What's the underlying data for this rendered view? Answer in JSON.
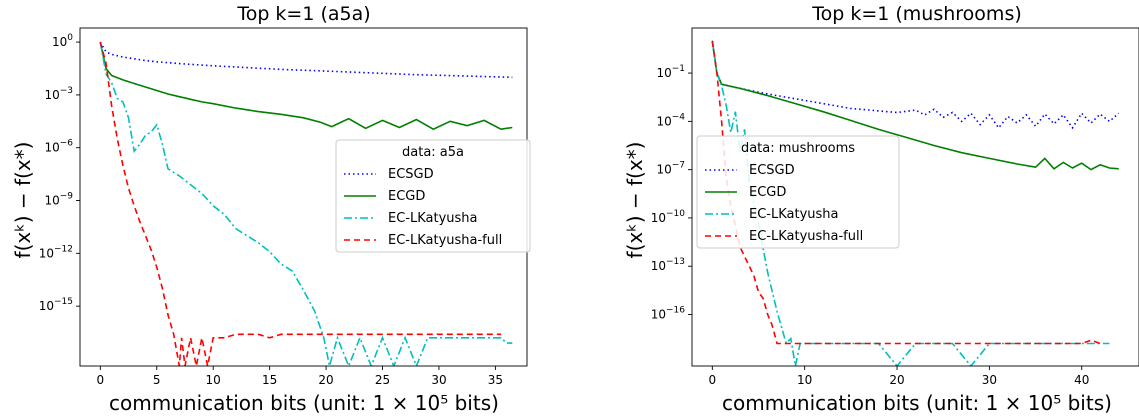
{
  "chart_data": [
    {
      "type": "line",
      "title": "Top k=1 (a5a)",
      "xlabel": "communication bits (unit: 1 × 10⁵ bits)",
      "ylabel": "f(xᵏ) − f(x*)",
      "yscale": "log",
      "xlim": [
        -1.8,
        37.8
      ],
      "ylim_log10": [
        -18.4,
        0.8
      ],
      "x_ticks": [
        0,
        5,
        10,
        15,
        20,
        25,
        30,
        35
      ],
      "x_tick_labels": [
        "0",
        "5",
        "10",
        "15",
        "20",
        "25",
        "30",
        "35"
      ],
      "y_ticks_log10": [
        0,
        -3,
        -6,
        -9,
        -12,
        -15
      ],
      "y_tick_labels": [
        "10^0",
        "10^-3",
        "10^-6",
        "10^-9",
        "10^-12",
        "10^-15"
      ],
      "grid": false,
      "legend": {
        "title": "data: a5a",
        "position": "center-right"
      },
      "series": [
        {
          "name": "ECSGD",
          "color": "#0000ff",
          "style": "dotted",
          "x": [
            0,
            0.5,
            1,
            2,
            3,
            4,
            5,
            7,
            10,
            13,
            16,
            20,
            24,
            28,
            32,
            36.5
          ],
          "y_log10": [
            0,
            -0.55,
            -0.7,
            -0.85,
            -0.95,
            -1.05,
            -1.12,
            -1.22,
            -1.35,
            -1.45,
            -1.55,
            -1.65,
            -1.75,
            -1.85,
            -1.92,
            -2.0
          ]
        },
        {
          "name": "ECGD",
          "color": "#008000",
          "style": "solid",
          "x": [
            0,
            0.5,
            1,
            2,
            3,
            4,
            5,
            6,
            7,
            8,
            9,
            10,
            12,
            14,
            16,
            18,
            19.5,
            20.5,
            22,
            23.5,
            25,
            26.5,
            28,
            29.5,
            31,
            32.5,
            34,
            35.5,
            36.5
          ],
          "y_log10": [
            0,
            -1.5,
            -1.9,
            -2.15,
            -2.35,
            -2.55,
            -2.75,
            -2.95,
            -3.1,
            -3.25,
            -3.4,
            -3.5,
            -3.75,
            -3.95,
            -4.1,
            -4.3,
            -4.55,
            -4.8,
            -4.35,
            -4.9,
            -4.45,
            -4.85,
            -4.4,
            -4.95,
            -4.5,
            -4.75,
            -4.45,
            -4.95,
            -4.85
          ]
        },
        {
          "name": "EC-LKatyusha",
          "color": "#00bfbf",
          "style": "dashdot",
          "x": [
            0,
            0.5,
            1,
            1.5,
            2,
            2.5,
            3,
            3.5,
            4,
            4.5,
            5,
            5.5,
            6,
            6.5,
            7,
            8,
            9,
            10,
            11,
            12,
            13,
            14,
            15,
            16,
            17,
            18,
            19,
            19.8,
            20.3,
            21,
            22,
            23,
            24,
            25,
            26,
            27,
            28,
            29,
            30,
            31,
            32,
            33,
            34,
            35,
            35.5,
            36,
            36.5
          ],
          "y_log10": [
            0,
            -1.8,
            -2.3,
            -3.2,
            -3.4,
            -4.3,
            -6.2,
            -5.8,
            -5.3,
            -5.1,
            -4.7,
            -5.8,
            -7.2,
            -7.4,
            -7.6,
            -8.1,
            -8.6,
            -9.3,
            -9.8,
            -10.6,
            -11.0,
            -11.4,
            -11.9,
            -12.6,
            -13.0,
            -14.1,
            -15.3,
            -16.8,
            -18.4,
            -16.8,
            -18.4,
            -16.8,
            -18.4,
            -16.8,
            -18.4,
            -16.8,
            -18.4,
            -16.8,
            -16.8,
            -16.8,
            -16.8,
            -16.8,
            -16.8,
            -16.8,
            -16.8,
            -17.1,
            -17.1
          ]
        },
        {
          "name": "EC-LKatyusha-full",
          "color": "#ff0000",
          "style": "dashed",
          "x": [
            0,
            0.5,
            1,
            1.5,
            2,
            2.5,
            3,
            3.5,
            4,
            4.5,
            5,
            5.5,
            6,
            6.5,
            7,
            7.2,
            7.5,
            8,
            8.5,
            9,
            9.5,
            10,
            10.5,
            11,
            12,
            13,
            14,
            15,
            16,
            18,
            20,
            22,
            24,
            26,
            28,
            30,
            32,
            34,
            35.5
          ],
          "y_log10": [
            0,
            -1.2,
            -3.6,
            -5.5,
            -7.0,
            -8.3,
            -9.3,
            -10.2,
            -11.0,
            -11.8,
            -12.8,
            -14.0,
            -15.5,
            -16.6,
            -18.4,
            -16.8,
            -18.4,
            -16.8,
            -18.4,
            -16.8,
            -18.4,
            -16.8,
            -16.8,
            -16.8,
            -16.6,
            -16.6,
            -16.6,
            -16.8,
            -16.6,
            -16.6,
            -16.6,
            -16.6,
            -16.6,
            -16.6,
            -16.6,
            -16.6,
            -16.6,
            -16.6,
            -16.6
          ]
        }
      ]
    },
    {
      "type": "line",
      "title": "Top k=1 (mushrooms)",
      "xlabel": "communication bits (unit: 1 × 10⁵ bits)",
      "ylabel": "f(xᵏ) − f(x*)",
      "yscale": "log",
      "xlim": [
        -2.2,
        46.2
      ],
      "ylim_log10": [
        -19.2,
        1.8
      ],
      "x_ticks": [
        0,
        10,
        20,
        30,
        40
      ],
      "x_tick_labels": [
        "0",
        "10",
        "20",
        "30",
        "40"
      ],
      "y_ticks_log10": [
        -1,
        -4,
        -7,
        -10,
        -13,
        -16
      ],
      "y_tick_labels": [
        "10^-1",
        "10^-4",
        "10^-7",
        "10^-10",
        "10^-13",
        "10^-16"
      ],
      "grid": false,
      "legend": {
        "title": "data: mushrooms",
        "position": "center-left"
      },
      "series": [
        {
          "name": "ECSGD",
          "color": "#0000ff",
          "style": "dotted",
          "x": [
            0,
            0.5,
            1,
            3,
            6,
            9,
            12,
            15,
            18,
            20,
            22,
            23,
            24,
            25,
            26,
            27,
            28,
            29,
            30,
            31,
            32,
            33,
            34,
            35,
            36,
            37,
            38,
            39,
            40,
            41,
            42,
            43,
            44
          ],
          "y_log10": [
            1,
            -1.0,
            -1.7,
            -1.95,
            -2.3,
            -2.6,
            -2.9,
            -3.2,
            -3.35,
            -3.45,
            -3.3,
            -3.6,
            -3.25,
            -3.75,
            -3.45,
            -4.0,
            -3.5,
            -4.2,
            -3.6,
            -4.4,
            -3.7,
            -4.1,
            -3.6,
            -4.3,
            -3.55,
            -4.15,
            -3.6,
            -4.4,
            -3.5,
            -4.1,
            -3.55,
            -4.0,
            -3.5
          ]
        },
        {
          "name": "ECGD",
          "color": "#008000",
          "style": "solid",
          "x": [
            0,
            0.5,
            1,
            3,
            6,
            9,
            12,
            15,
            18,
            21,
            24,
            27,
            30,
            33,
            35,
            36,
            37,
            38,
            39,
            40,
            41,
            42,
            43,
            44
          ],
          "y_log10": [
            1,
            -1.0,
            -1.7,
            -1.95,
            -2.4,
            -2.9,
            -3.4,
            -3.95,
            -4.5,
            -5.0,
            -5.5,
            -5.95,
            -6.3,
            -6.65,
            -6.85,
            -6.3,
            -6.95,
            -6.55,
            -6.9,
            -6.6,
            -7.0,
            -6.7,
            -6.9,
            -6.95
          ]
        },
        {
          "name": "EC-LKatyusha",
          "color": "#00bfbf",
          "style": "dashdot",
          "x": [
            0,
            0.5,
            1,
            1.5,
            2,
            2.5,
            3,
            3.5,
            4,
            5,
            6,
            7,
            8,
            8.5,
            9,
            9.5,
            10,
            12,
            14,
            16,
            18,
            20,
            22,
            24,
            26,
            28,
            30,
            32,
            34,
            36,
            38,
            40,
            42,
            43
          ],
          "y_log10": [
            1,
            -1.0,
            -1.8,
            -3.0,
            -4.7,
            -3.4,
            -5.9,
            -4.5,
            -7.8,
            -10.4,
            -13.4,
            -15.8,
            -17.8,
            -17.5,
            -19.2,
            -17.8,
            -17.8,
            -17.8,
            -17.8,
            -17.8,
            -17.8,
            -19.2,
            -17.8,
            -17.8,
            -17.8,
            -19.2,
            -17.8,
            -17.8,
            -17.8,
            -17.8,
            -17.8,
            -17.8,
            -17.8,
            -17.8
          ]
        },
        {
          "name": "EC-LKatyusha-full",
          "color": "#ff0000",
          "style": "dashed",
          "x": [
            0,
            0.5,
            1,
            1.5,
            2,
            2.5,
            3,
            3.5,
            4,
            4.5,
            5,
            5.5,
            6,
            6.5,
            7,
            7.5,
            8,
            10,
            14,
            18,
            22,
            26,
            30,
            34,
            38,
            40,
            41,
            42
          ],
          "y_log10": [
            1,
            -1.0,
            -4.0,
            -7.5,
            -9.3,
            -10.5,
            -11.8,
            -12.4,
            -13.0,
            -13.6,
            -14.6,
            -15.0,
            -16.0,
            -16.7,
            -17.8,
            -17.8,
            -17.8,
            -17.8,
            -17.8,
            -17.8,
            -17.8,
            -17.8,
            -17.8,
            -17.8,
            -17.8,
            -17.8,
            -17.6,
            -17.8
          ]
        }
      ]
    }
  ]
}
